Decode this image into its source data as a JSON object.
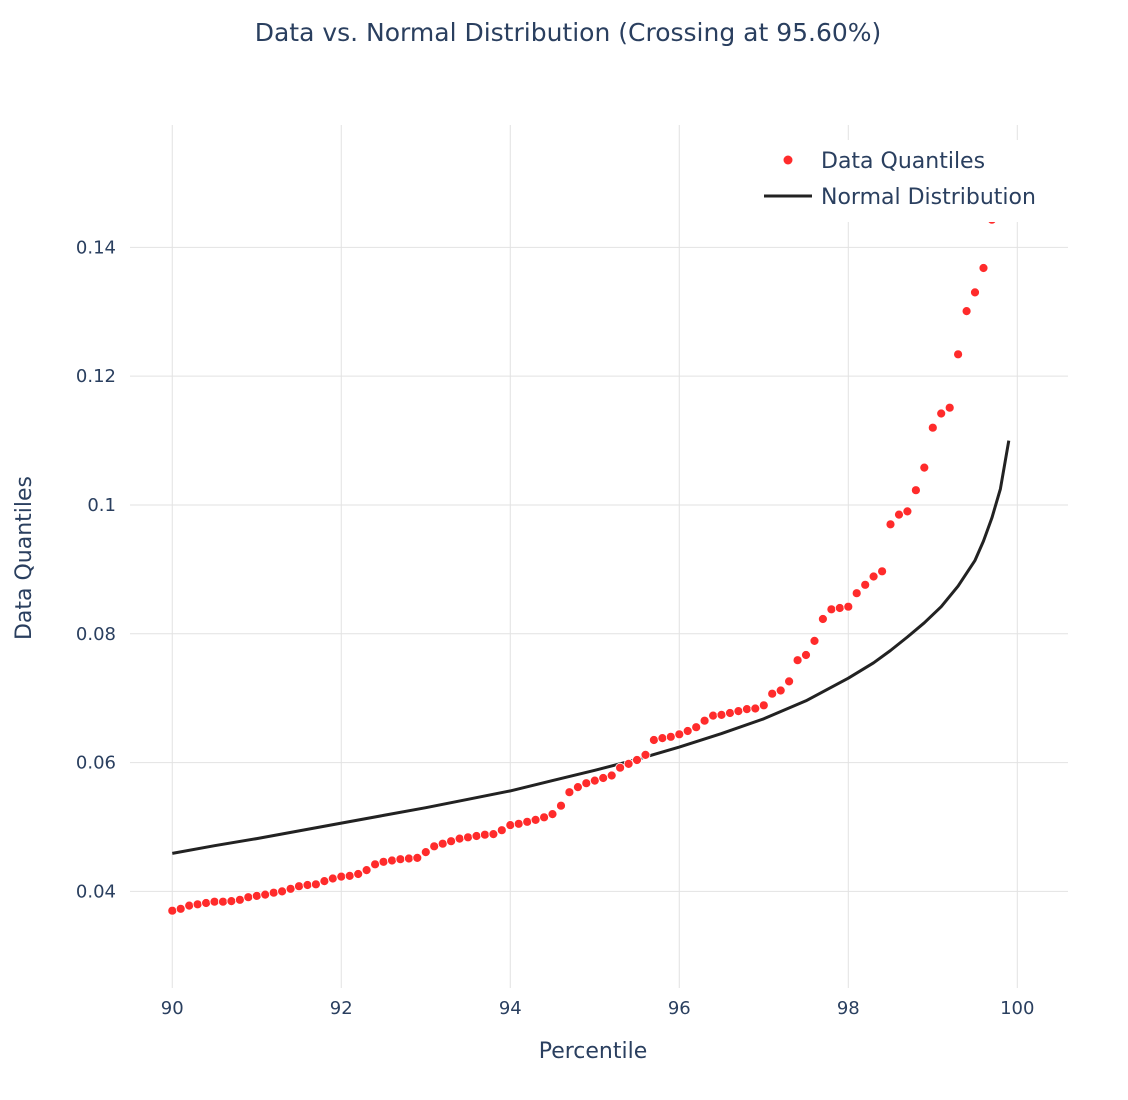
{
  "chart_data": {
    "type": "scatter",
    "title": "Data vs. Normal Distribution (Crossing at 95.60%)",
    "xlabel": "Percentile",
    "ylabel": "Data Quantiles",
    "xlim": [
      89.5,
      100.6
    ],
    "ylim": [
      0.025,
      0.159
    ],
    "xticks": [
      90,
      92,
      94,
      96,
      98,
      100
    ],
    "yticks": [
      0.04,
      0.06,
      0.08,
      0.1,
      0.12,
      0.14
    ],
    "ytick_labels": [
      "0.04",
      "0.06",
      "0.08",
      "0.1",
      "0.12",
      "0.14"
    ],
    "grid": true,
    "legend_position": "top-right",
    "colors": {
      "data": "#ff2b2b",
      "normal": "#222222",
      "grid": "#e2e2e2",
      "text": "#2a3f5f"
    },
    "series": [
      {
        "name": "Data Quantiles",
        "mode": "markers",
        "x": [
          90.0,
          90.1,
          90.2,
          90.3,
          90.4,
          90.5,
          90.6,
          90.7,
          90.8,
          90.9,
          91.0,
          91.1,
          91.2,
          91.3,
          91.4,
          91.5,
          91.6,
          91.7,
          91.8,
          91.9,
          92.0,
          92.1,
          92.2,
          92.3,
          92.4,
          92.5,
          92.6,
          92.7,
          92.8,
          92.9,
          93.0,
          93.1,
          93.2,
          93.3,
          93.4,
          93.5,
          93.6,
          93.7,
          93.8,
          93.9,
          94.0,
          94.1,
          94.2,
          94.3,
          94.4,
          94.5,
          94.6,
          94.7,
          94.8,
          94.9,
          95.0,
          95.1,
          95.2,
          95.3,
          95.4,
          95.5,
          95.6,
          95.7,
          95.8,
          95.9,
          96.0,
          96.1,
          96.2,
          96.3,
          96.4,
          96.5,
          96.6,
          96.7,
          96.8,
          96.9,
          97.0,
          97.1,
          97.2,
          97.3,
          97.4,
          97.5,
          97.6,
          97.7,
          97.8,
          97.9,
          98.0,
          98.1,
          98.2,
          98.3,
          98.4,
          98.5,
          98.6,
          98.7,
          98.8,
          98.9,
          99.0,
          99.1,
          99.2,
          99.3,
          99.4,
          99.5,
          99.6,
          99.7
        ],
        "y": [
          0.037,
          0.0373,
          0.0378,
          0.038,
          0.0382,
          0.0384,
          0.0384,
          0.0385,
          0.0387,
          0.0391,
          0.0393,
          0.0395,
          0.0398,
          0.04,
          0.0404,
          0.0408,
          0.041,
          0.0411,
          0.0416,
          0.042,
          0.0423,
          0.0424,
          0.0427,
          0.0433,
          0.0442,
          0.0446,
          0.0448,
          0.045,
          0.0451,
          0.0452,
          0.0461,
          0.047,
          0.0474,
          0.0478,
          0.0482,
          0.0484,
          0.0486,
          0.0488,
          0.0489,
          0.0495,
          0.0503,
          0.0505,
          0.0508,
          0.0511,
          0.0515,
          0.052,
          0.0533,
          0.0554,
          0.0562,
          0.0568,
          0.0572,
          0.0576,
          0.058,
          0.0592,
          0.0598,
          0.0604,
          0.0612,
          0.0635,
          0.0638,
          0.064,
          0.0644,
          0.0649,
          0.0655,
          0.0665,
          0.0673,
          0.0674,
          0.0677,
          0.068,
          0.0683,
          0.0684,
          0.0689,
          0.0707,
          0.0712,
          0.0726,
          0.0759,
          0.0767,
          0.0789,
          0.0823,
          0.0838,
          0.084,
          0.0842,
          0.0863,
          0.0876,
          0.0889,
          0.0897,
          0.097,
          0.0985,
          0.099,
          0.1023,
          0.1058,
          0.112,
          0.1142,
          0.1151,
          0.1234,
          0.1301,
          0.133,
          0.1368,
          0.1443
        ]
      },
      {
        "name": "Normal Distribution",
        "mode": "lines",
        "x": [
          90.0,
          90.5,
          91.0,
          91.5,
          92.0,
          92.5,
          93.0,
          93.5,
          94.0,
          94.5,
          95.0,
          95.5,
          96.0,
          96.5,
          97.0,
          97.5,
          98.0,
          98.3,
          98.5,
          98.7,
          98.9,
          99.1,
          99.3,
          99.5,
          99.6,
          99.7,
          99.8,
          99.9
        ],
        "y": [
          0.0459,
          0.0471,
          0.0482,
          0.0494,
          0.0506,
          0.0518,
          0.053,
          0.0543,
          0.0556,
          0.0572,
          0.0588,
          0.0605,
          0.0624,
          0.0645,
          0.0668,
          0.0696,
          0.0731,
          0.0755,
          0.0774,
          0.0795,
          0.0817,
          0.0842,
          0.0874,
          0.0914,
          0.0944,
          0.098,
          0.1025,
          0.11
        ]
      }
    ]
  }
}
